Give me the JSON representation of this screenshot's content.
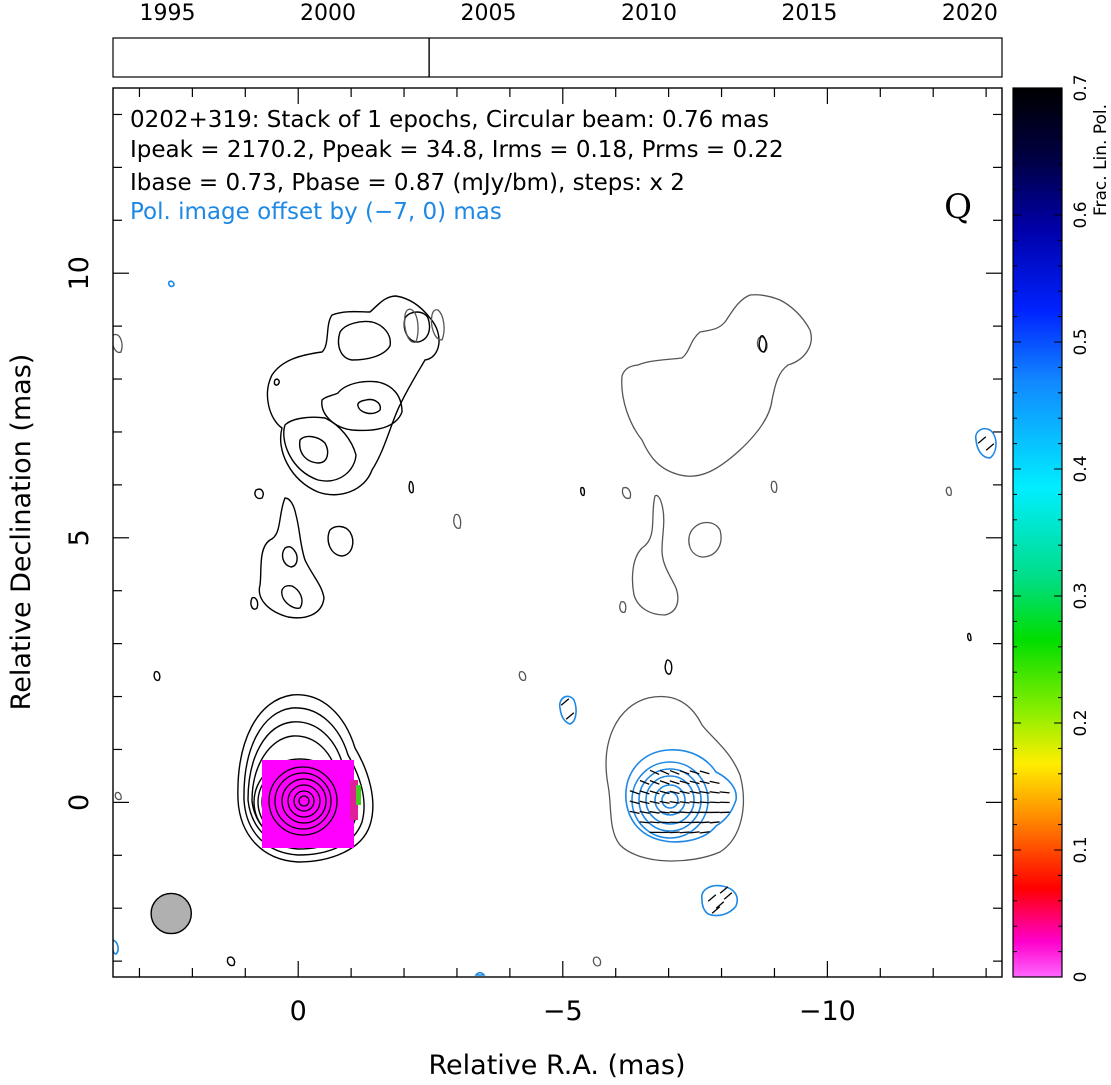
{
  "chart_data": {
    "type": "contour",
    "source": "0202+319",
    "annotation_lines": [
      "0202+319: Stack of 1 epochs, Circular beam: 0.76 mas",
      "Ipeak = 2170.2, Ppeak = 34.8, Irms = 0.18, Prms = 0.22",
      "Ibase = 0.73, Pbase = 0.87 (mJy/bm), steps: x 2",
      "Pol. image offset by (−7, 0) mas"
    ],
    "band_label": "Q",
    "xlabel": "Relative R.A. (mas)",
    "ylabel": "Relative Declination (mas)",
    "xlim": [
      3.5,
      -13.3
    ],
    "ylim": [
      -3.3,
      13.5
    ],
    "x_ticks": [
      {
        "v": 0,
        "label": "0"
      },
      {
        "v": -5,
        "label": "−5"
      },
      {
        "v": -10,
        "label": "−10"
      }
    ],
    "y_ticks": [
      {
        "v": 0,
        "label": "0"
      },
      {
        "v": 5,
        "label": "5"
      },
      {
        "v": 10,
        "label": "10"
      }
    ],
    "timeline": {
      "years": [
        "1995",
        "2000",
        "2005",
        "2010",
        "2015",
        "2020"
      ],
      "year_range": [
        1993.3,
        2021.0
      ],
      "epochs": [
        2003.15
      ]
    },
    "colorbar": {
      "label": "Frac. Lin. Pol.",
      "range": [
        0,
        0.7
      ],
      "ticks": [
        "0",
        "0.1",
        "0.2",
        "0.3",
        "0.4",
        "0.5",
        "0.6",
        "0.7"
      ]
    },
    "beam_mas": 0.76,
    "beam_center": [
      2.4,
      -2.1
    ],
    "pol_offset_mas": [
      -7,
      0
    ],
    "core": {
      "x": 0.0,
      "y": 0.0,
      "frac_pol_fill": 0.02
    },
    "colors": {
      "total_intensity": "#000000",
      "pol_total_intensity": "#555555",
      "pol_contours": "#1e88e5",
      "core_fill": "#ff00ff",
      "beam": "#b0b0b0",
      "pol_text": "#1e88e5"
    }
  }
}
